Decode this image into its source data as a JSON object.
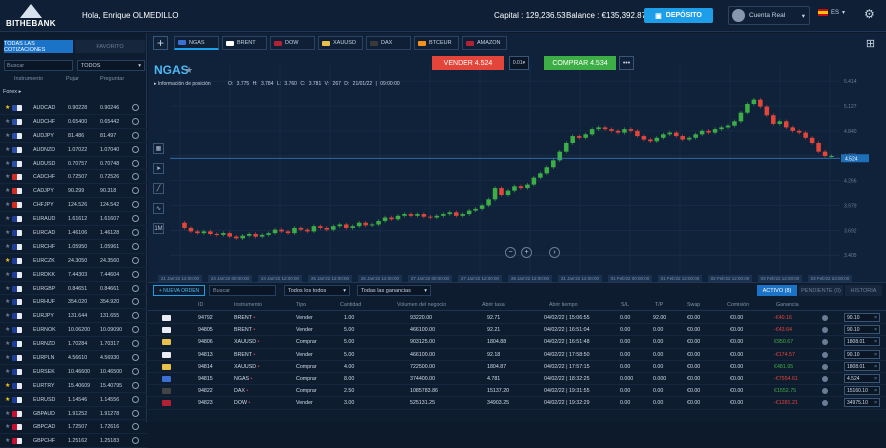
{
  "app": {
    "brand": "BITHEBANK",
    "greeting": "Hola, Enrique OLMEDILLO",
    "capital": "Capital : 129,236.53",
    "balance": "Balance : €135,392.87",
    "deposit_label": "DEPÓSITO",
    "account_label": "Cuenta Real",
    "lang": "ES"
  },
  "colors": {
    "accent": "#1d9ee8",
    "sell": "#e4453a",
    "buy": "#3cae45",
    "background": "#0d1a2c"
  },
  "sidebar": {
    "tabs": [
      "TODAS LAS COTIZACIONES",
      "FAVORITO"
    ],
    "search_placeholder": "Buscar",
    "filter": "TODOS",
    "headers": {
      "instrument": "Instrumento",
      "bid": "Pujar",
      "ask": "Preguntar"
    },
    "group": "Forex",
    "rows": [
      {
        "sym": "AUDCAD",
        "bid": "0.90228",
        "ask": "0.90246",
        "fav": true,
        "color": "#2a4fa8"
      },
      {
        "sym": "AUDCHF",
        "bid": "0.65400",
        "ask": "0.65442",
        "fav": false,
        "color": "#2a4fa8"
      },
      {
        "sym": "AUDJPY",
        "bid": "81.486",
        "ask": "81.497",
        "fav": false,
        "color": "#2a4fa8"
      },
      {
        "sym": "AUDNZD",
        "bid": "1.07022",
        "ask": "1.07040",
        "fav": false,
        "color": "#2a4fa8"
      },
      {
        "sym": "AUDUSD",
        "bid": "0.70757",
        "ask": "0.70748",
        "fav": false,
        "color": "#2a4fa8"
      },
      {
        "sym": "CADCHF",
        "bid": "0.72507",
        "ask": "0.72526",
        "fav": false,
        "color": "#d52b1e"
      },
      {
        "sym": "CADJPY",
        "bid": "90.299",
        "ask": "90.318",
        "fav": false,
        "color": "#d52b1e"
      },
      {
        "sym": "CHFJPY",
        "bid": "124.526",
        "ask": "124.542",
        "fav": false,
        "color": "#d52b1e"
      },
      {
        "sym": "EURAUD",
        "bid": "1.61612",
        "ask": "1.61607",
        "fav": false,
        "color": "#1e3c9a"
      },
      {
        "sym": "EURCAD",
        "bid": "1.46106",
        "ask": "1.46128",
        "fav": false,
        "color": "#1e3c9a"
      },
      {
        "sym": "EURCHF",
        "bid": "1.05950",
        "ask": "1.05961",
        "fav": false,
        "color": "#1e3c9a"
      },
      {
        "sym": "EURCZK",
        "bid": "24.3050",
        "ask": "24.3560",
        "fav": true,
        "color": "#1e3c9a"
      },
      {
        "sym": "EURDKK",
        "bid": "7.44303",
        "ask": "7.44604",
        "fav": false,
        "color": "#1e3c9a"
      },
      {
        "sym": "EURGBP",
        "bid": "0.84651",
        "ask": "0.84661",
        "fav": false,
        "color": "#1e3c9a"
      },
      {
        "sym": "EURHUF",
        "bid": "354.020",
        "ask": "354.920",
        "fav": false,
        "color": "#1e3c9a"
      },
      {
        "sym": "EURJPY",
        "bid": "131.644",
        "ask": "131.655",
        "fav": false,
        "color": "#1e3c9a"
      },
      {
        "sym": "EURNOK",
        "bid": "10.06200",
        "ask": "10.09090",
        "fav": false,
        "color": "#1e3c9a"
      },
      {
        "sym": "EURNZD",
        "bid": "1.70284",
        "ask": "1.70317",
        "fav": false,
        "color": "#1e3c9a"
      },
      {
        "sym": "EURPLN",
        "bid": "4.56610",
        "ask": "4.56930",
        "fav": false,
        "color": "#1e3c9a"
      },
      {
        "sym": "EURSEK",
        "bid": "10.46600",
        "ask": "10.46500",
        "fav": false,
        "color": "#1e3c9a"
      },
      {
        "sym": "EURTRY",
        "bid": "15.40609",
        "ask": "15.40795",
        "fav": true,
        "color": "#1e3c9a"
      },
      {
        "sym": "EURUSD",
        "bid": "1.14546",
        "ask": "1.14556",
        "fav": true,
        "color": "#1e3c9a"
      },
      {
        "sym": "GBPAUD",
        "bid": "1.91252",
        "ask": "1.91278",
        "fav": false,
        "color": "#c8102e"
      },
      {
        "sym": "GBPCAD",
        "bid": "1.72507",
        "ask": "1.72616",
        "fav": false,
        "color": "#c8102e"
      },
      {
        "sym": "GBPCHF",
        "bid": "1.25162",
        "ask": "1.25183",
        "fav": false,
        "color": "#c8102e"
      }
    ]
  },
  "chart_tabs": [
    {
      "label": "NGAS",
      "color": "#3b6fd1",
      "active": true
    },
    {
      "label": "BRENT",
      "color": "#ffffff",
      "active": false
    },
    {
      "label": "DOW",
      "color": "#b22234",
      "active": false
    },
    {
      "label": "XAUUSD",
      "color": "#e8c14a",
      "active": false
    },
    {
      "label": "DAX",
      "color": "#3a3a3a",
      "active": false
    },
    {
      "label": "BTCEUR",
      "color": "#f7931a",
      "active": false
    },
    {
      "label": "AMAZON",
      "color": "#b22234",
      "active": false
    }
  ],
  "chart": {
    "symbol": "NGAS",
    "position_info": "Información de posición",
    "ohlc": "O: 3.775  H: 3.784  L: 3.760  C: 3.781  V: 267  D: 21/01/22 | 09:00:00",
    "sell_label": "VENDER 4.524",
    "qty": "0.01",
    "buy_label": "COMPRAR 4.534",
    "more": "•••"
  },
  "chart_data": {
    "type": "candlestick",
    "symbol": "NGAS",
    "current_price": 4.524,
    "current_price_label": "4.524",
    "y_ticks": [
      "5.414",
      "5.127",
      "4.840",
      "4.553",
      "4.266",
      "3.979",
      "3.692",
      "3.405"
    ],
    "ylim": [
      3.2,
      5.6
    ],
    "x_ticks": [
      "21 Jan'22 12:00:00",
      "24 Jan'22 00:00:00",
      "24 Jan'22 12:00:00",
      "25 Jan'22 12:00:00",
      "26 Jan'22 12:00:00",
      "27 Jan'22 00:00:00",
      "27 Jan'22 12:00:00",
      "28 Jan'22 12:00:00",
      "31 Jan'22 12:00:00",
      "01 Feb'22 00:00:00",
      "01 Feb'22 12:00:00",
      "02 Feb'22 12:00:00",
      "03 Feb'22 12:00:00",
      "03 Feb'22 24:00:00"
    ],
    "series": [
      {
        "values": [
          3.78,
          3.72,
          3.68,
          3.66,
          3.68,
          3.65,
          3.64,
          3.66,
          3.62,
          3.6,
          3.63,
          3.65,
          3.62,
          3.64,
          3.66,
          3.7,
          3.68,
          3.66,
          3.72,
          3.7,
          3.68,
          3.74,
          3.72,
          3.7,
          3.74,
          3.76,
          3.72,
          3.74,
          3.78,
          3.75,
          3.76,
          3.8,
          3.84,
          3.82,
          3.86,
          3.88,
          3.86,
          3.88,
          3.85,
          3.84,
          3.86,
          3.88,
          3.9,
          3.86,
          3.88,
          3.92,
          3.94,
          3.98,
          4.05,
          4.18,
          4.1,
          4.15,
          4.2,
          4.18,
          4.22,
          4.3,
          4.35,
          4.42,
          4.5,
          4.6,
          4.7,
          4.78,
          4.76,
          4.8,
          4.86,
          4.88,
          4.86,
          4.84,
          4.82,
          4.86,
          4.84,
          4.78,
          4.74,
          4.72,
          4.76,
          4.8,
          4.82,
          4.78,
          4.74,
          4.76,
          4.8,
          4.84,
          4.82,
          4.86,
          4.88,
          4.9,
          4.95,
          5.05,
          5.15,
          5.2,
          5.12,
          5.02,
          4.92,
          4.95,
          4.88,
          4.84,
          4.82,
          4.76,
          4.7,
          4.6,
          4.55,
          4.55
        ]
      }
    ]
  },
  "toolbar": {
    "tools": [
      "chart-icon",
      "cursor-icon",
      "line-icon",
      "trend-icon",
      "indicator-icon"
    ],
    "indicator_label": "1M"
  },
  "orders": {
    "new_order": "+ NUEVA ORDEN",
    "search_placeholder": "Buscar",
    "filter_all": "Todos los todos",
    "filter_gain": "Todas las ganancias",
    "tabs": [
      "ACTIVO (8)",
      "PENDIENTE (0)",
      "HISTORIA"
    ],
    "headers": [
      "ID",
      "Instrumento",
      "Tipo",
      "Cantidad",
      "Volumen del negocio",
      "Abrir tasa",
      "Abrir tiempo",
      "S/L",
      "T/P",
      "Swap",
      "Comisión",
      "Ganancia"
    ],
    "rows": [
      {
        "id": "94792",
        "inst": "BRENT",
        "type": "Vender",
        "qty": "1.00",
        "vol": "93220.00",
        "rate": "92.71",
        "time": "04/02/22 | 15:06:55",
        "sl": "0.00",
        "tp": "92.00",
        "swap": "€0.00",
        "com": "€0.00",
        "profit": "-€40.16",
        "neg": true,
        "val": "90.10"
      },
      {
        "id": "94805",
        "inst": "BRENT",
        "type": "Vender",
        "qty": "5.00",
        "vol": "466100.00",
        "rate": "92.21",
        "time": "04/02/22 | 16:51:04",
        "sl": "0.00",
        "tp": "0.00",
        "swap": "€0.00",
        "com": "€0.00",
        "profit": "-€43.64",
        "neg": true,
        "val": "90.10"
      },
      {
        "id": "94806",
        "inst": "XAUUSD",
        "type": "Comprar",
        "qty": "5.00",
        "vol": "903125.00",
        "rate": "1804.88",
        "time": "04/02/22 | 16:51:48",
        "sl": "0.00",
        "tp": "0.00",
        "swap": "€0.00",
        "com": "€0.00",
        "profit": "€950.67",
        "neg": false,
        "val": "1808.01"
      },
      {
        "id": "94813",
        "inst": "BRENT",
        "type": "Vender",
        "qty": "5.00",
        "vol": "466100.00",
        "rate": "92.18",
        "time": "04/02/22 | 17:58:50",
        "sl": "0.00",
        "tp": "0.00",
        "swap": "€0.00",
        "com": "€0.00",
        "profit": "-€174.57",
        "neg": true,
        "val": "90.10"
      },
      {
        "id": "94814",
        "inst": "XAUUSD",
        "type": "Comprar",
        "qty": "4.00",
        "vol": "722500.00",
        "rate": "1804.87",
        "time": "04/02/22 | 17:57:15",
        "sl": "0.00",
        "tp": "0.00",
        "swap": "€0.00",
        "com": "€0.00",
        "profit": "€481.95",
        "neg": false,
        "val": "1808.01"
      },
      {
        "id": "94815",
        "inst": "NGAS",
        "type": "Comprar",
        "qty": "8.00",
        "vol": "374400.00",
        "rate": "4.781",
        "time": "04/02/22 | 18:32:25",
        "sl": "0.000",
        "tp": "0.000",
        "swap": "€0.00",
        "com": "€0.00",
        "profit": "-€7554.61",
        "neg": true,
        "val": "4.524"
      },
      {
        "id": "94822",
        "inst": "DAX",
        "type": "Comprar",
        "qty": "2.50",
        "vol": "1085783.86",
        "rate": "15137.20",
        "time": "04/02/22 | 19:31:55",
        "sl": "0.00",
        "tp": "0.00",
        "swap": "€0.00",
        "com": "€0.00",
        "profit": "€1552.75",
        "neg": false,
        "val": "15160.10"
      },
      {
        "id": "94823",
        "inst": "DOW",
        "type": "Vender",
        "qty": "3.00",
        "vol": "525131.25",
        "rate": "34903.25",
        "time": "04/02/22 | 19:32:29",
        "sl": "0.00",
        "tp": "0.00",
        "swap": "€0.00",
        "com": "€0.00",
        "profit": "-€1281.21",
        "neg": true,
        "val": "34975.10"
      }
    ]
  }
}
